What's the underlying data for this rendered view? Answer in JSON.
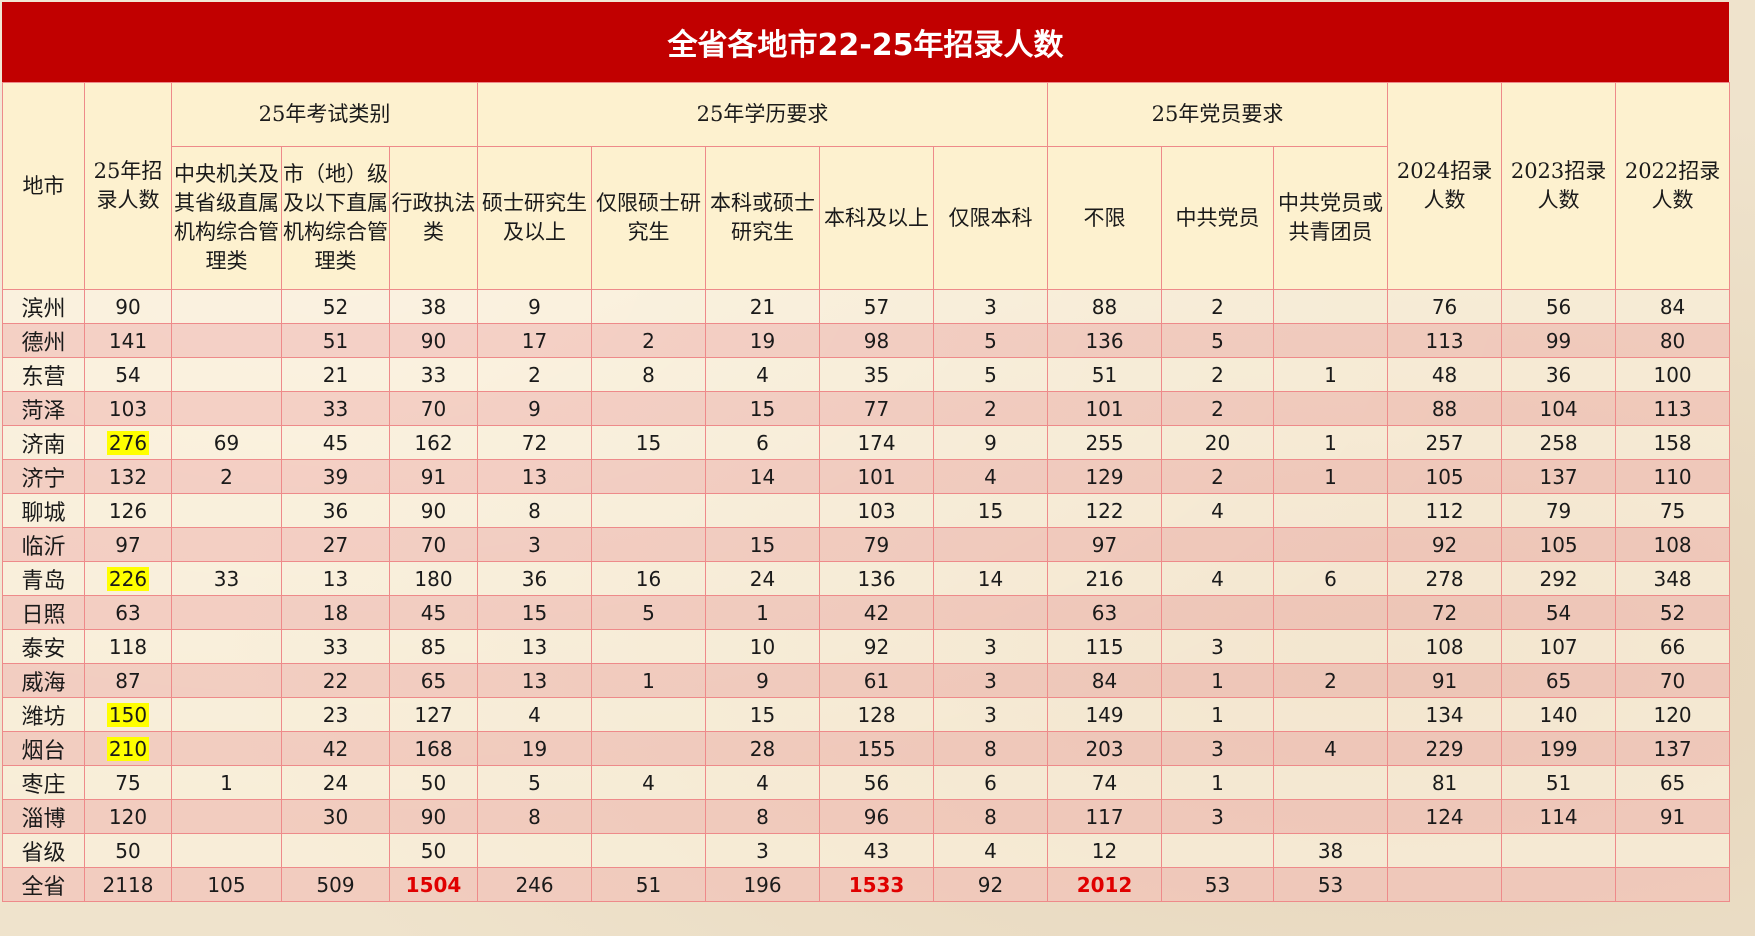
{
  "title": "全省各地市22-25年招录人数",
  "headers": {
    "city": "地市",
    "total25": "25年招录人数",
    "group_exam": "25年考试类别",
    "group_edu": "25年学历要求",
    "group_party": "25年党员要求",
    "exam_cols": [
      "中央机关及其省级直属机构综合管理类",
      "市（地）级及以下直属机构综合管理类",
      "行政执法类"
    ],
    "edu_cols": [
      "硕士研究生及以上",
      "仅限硕士研究生",
      "本科或硕士研究生",
      "本科及以上",
      "仅限本科"
    ],
    "party_cols": [
      "不限",
      "中共党员",
      "中共党员或共青团员"
    ],
    "y2024": "2024招录人数",
    "y2023": "2023招录人数",
    "y2022": "2022招录人数"
  },
  "rows": [
    [
      "滨州",
      "90",
      "",
      "52",
      "38",
      "9",
      "",
      "21",
      "57",
      "3",
      "88",
      "2",
      "",
      "76",
      "56",
      "84"
    ],
    [
      "德州",
      "141",
      "",
      "51",
      "90",
      "17",
      "2",
      "19",
      "98",
      "5",
      "136",
      "5",
      "",
      "113",
      "99",
      "80"
    ],
    [
      "东营",
      "54",
      "",
      "21",
      "33",
      "2",
      "8",
      "4",
      "35",
      "5",
      "51",
      "2",
      "1",
      "48",
      "36",
      "100"
    ],
    [
      "菏泽",
      "103",
      "",
      "33",
      "70",
      "9",
      "",
      "15",
      "77",
      "2",
      "101",
      "2",
      "",
      "88",
      "104",
      "113"
    ],
    [
      "济南",
      "276",
      "69",
      "45",
      "162",
      "72",
      "15",
      "6",
      "174",
      "9",
      "255",
      "20",
      "1",
      "257",
      "258",
      "158"
    ],
    [
      "济宁",
      "132",
      "2",
      "39",
      "91",
      "13",
      "",
      "14",
      "101",
      "4",
      "129",
      "2",
      "1",
      "105",
      "137",
      "110"
    ],
    [
      "聊城",
      "126",
      "",
      "36",
      "90",
      "8",
      "",
      "",
      "103",
      "15",
      "122",
      "4",
      "",
      "112",
      "79",
      "75"
    ],
    [
      "临沂",
      "97",
      "",
      "27",
      "70",
      "3",
      "",
      "15",
      "79",
      "",
      "97",
      "",
      "",
      "92",
      "105",
      "108"
    ],
    [
      "青岛",
      "226",
      "33",
      "13",
      "180",
      "36",
      "16",
      "24",
      "136",
      "14",
      "216",
      "4",
      "6",
      "278",
      "292",
      "348"
    ],
    [
      "日照",
      "63",
      "",
      "18",
      "45",
      "15",
      "5",
      "1",
      "42",
      "",
      "63",
      "",
      "",
      "72",
      "54",
      "52"
    ],
    [
      "泰安",
      "118",
      "",
      "33",
      "85",
      "13",
      "",
      "10",
      "92",
      "3",
      "115",
      "3",
      "",
      "108",
      "107",
      "66"
    ],
    [
      "威海",
      "87",
      "",
      "22",
      "65",
      "13",
      "1",
      "9",
      "61",
      "3",
      "84",
      "1",
      "2",
      "91",
      "65",
      "70"
    ],
    [
      "潍坊",
      "150",
      "",
      "23",
      "127",
      "4",
      "",
      "15",
      "128",
      "3",
      "149",
      "1",
      "",
      "134",
      "140",
      "120"
    ],
    [
      "烟台",
      "210",
      "",
      "42",
      "168",
      "19",
      "",
      "28",
      "155",
      "8",
      "203",
      "3",
      "4",
      "229",
      "199",
      "137"
    ],
    [
      "枣庄",
      "75",
      "1",
      "24",
      "50",
      "5",
      "4",
      "4",
      "56",
      "6",
      "74",
      "1",
      "",
      "81",
      "51",
      "65"
    ],
    [
      "淄博",
      "120",
      "",
      "30",
      "90",
      "8",
      "",
      "8",
      "96",
      "8",
      "117",
      "3",
      "",
      "124",
      "114",
      "91"
    ],
    [
      "省级",
      "50",
      "",
      "",
      "50",
      "",
      "",
      "3",
      "43",
      "4",
      "12",
      "",
      "38",
      "",
      "",
      ""
    ],
    [
      "全省",
      "2118",
      "105",
      "509",
      "1504",
      "246",
      "51",
      "196",
      "1533",
      "92",
      "2012",
      "53",
      "53",
      "",
      "",
      ""
    ]
  ],
  "highlight_yellow_rows": [
    4,
    8,
    12,
    13
  ],
  "emphasis_red_in_total": [
    4,
    8,
    10
  ],
  "colors": {
    "title_bg": "#c10000",
    "header_bg": "#fdf1cf",
    "grid": "#ee8a8a",
    "highlight": "#ffff00",
    "emphasis": "#e00000"
  }
}
